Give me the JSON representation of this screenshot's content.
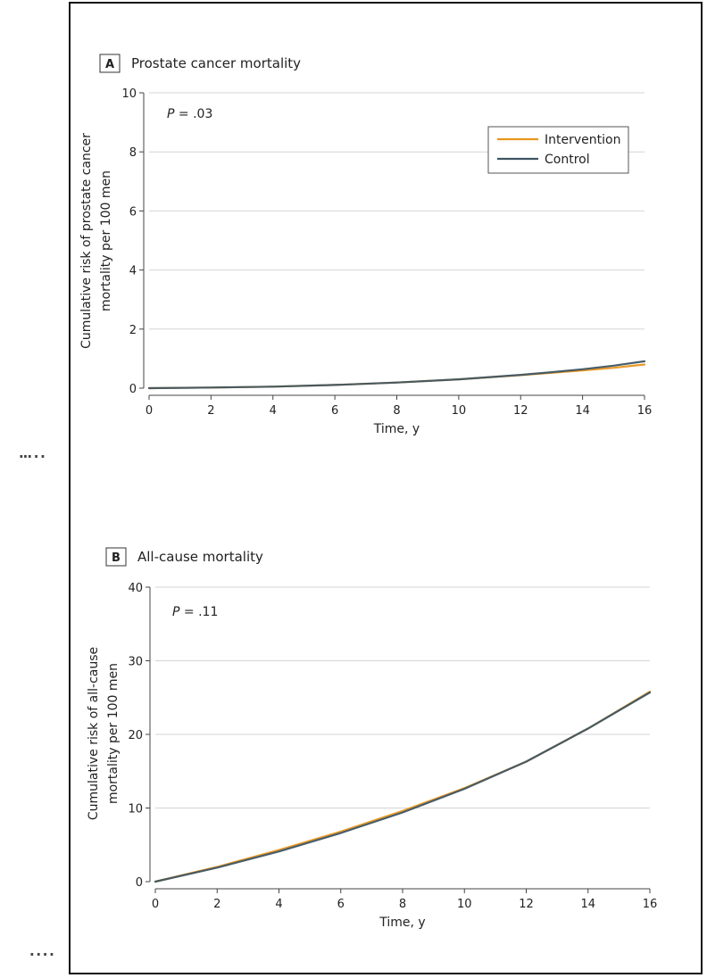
{
  "chart_data": [
    {
      "type": "line",
      "panel_letter": "A",
      "title": "Prostate cancer mortality",
      "xlabel": "Time, y",
      "ylabel_lines": [
        "Cumulative risk of prostate cancer",
        "mortality per 100 men"
      ],
      "p_prefix": "P",
      "p_value": "= .03",
      "xlim": [
        0,
        16
      ],
      "ylim": [
        0,
        10
      ],
      "xticks": [
        0,
        2,
        4,
        6,
        8,
        10,
        12,
        14,
        16
      ],
      "yticks": [
        0,
        2,
        4,
        6,
        8,
        10
      ],
      "grid": true,
      "legend_position": "top-right",
      "series": [
        {
          "name": "Intervention",
          "color": "#E8961E",
          "x": [
            0,
            2,
            4,
            6,
            8,
            10,
            12,
            13,
            14,
            15,
            16
          ],
          "y": [
            0,
            0.02,
            0.05,
            0.11,
            0.19,
            0.3,
            0.44,
            0.52,
            0.6,
            0.69,
            0.8
          ]
        },
        {
          "name": "Control",
          "color": "#3F5563",
          "x": [
            0,
            2,
            4,
            6,
            8,
            10,
            12,
            13,
            14,
            15,
            16
          ],
          "y": [
            0,
            0.02,
            0.05,
            0.11,
            0.19,
            0.3,
            0.45,
            0.54,
            0.64,
            0.76,
            0.91
          ]
        }
      ]
    },
    {
      "type": "line",
      "panel_letter": "B",
      "title": "All-cause mortality",
      "xlabel": "Time, y",
      "ylabel_lines": [
        "Cumulative risk of all-cause",
        "mortality per 100 men"
      ],
      "p_prefix": "P",
      "p_value": "= .11",
      "xlim": [
        0,
        16
      ],
      "ylim": [
        0,
        40
      ],
      "xticks": [
        0,
        2,
        4,
        6,
        8,
        10,
        12,
        14,
        16
      ],
      "yticks": [
        0,
        10,
        20,
        30,
        40
      ],
      "grid": true,
      "series": [
        {
          "name": "Intervention",
          "color": "#E8961E",
          "x": [
            0,
            2,
            4,
            6,
            8,
            10,
            12,
            14,
            16
          ],
          "y": [
            0,
            2.0,
            4.3,
            6.8,
            9.6,
            12.7,
            16.3,
            20.8,
            25.8
          ]
        },
        {
          "name": "Control",
          "color": "#3F5563",
          "x": [
            0,
            2,
            4,
            6,
            8,
            10,
            12,
            14,
            16
          ],
          "y": [
            0,
            1.9,
            4.1,
            6.6,
            9.4,
            12.6,
            16.3,
            20.8,
            25.7
          ]
        }
      ]
    }
  ]
}
